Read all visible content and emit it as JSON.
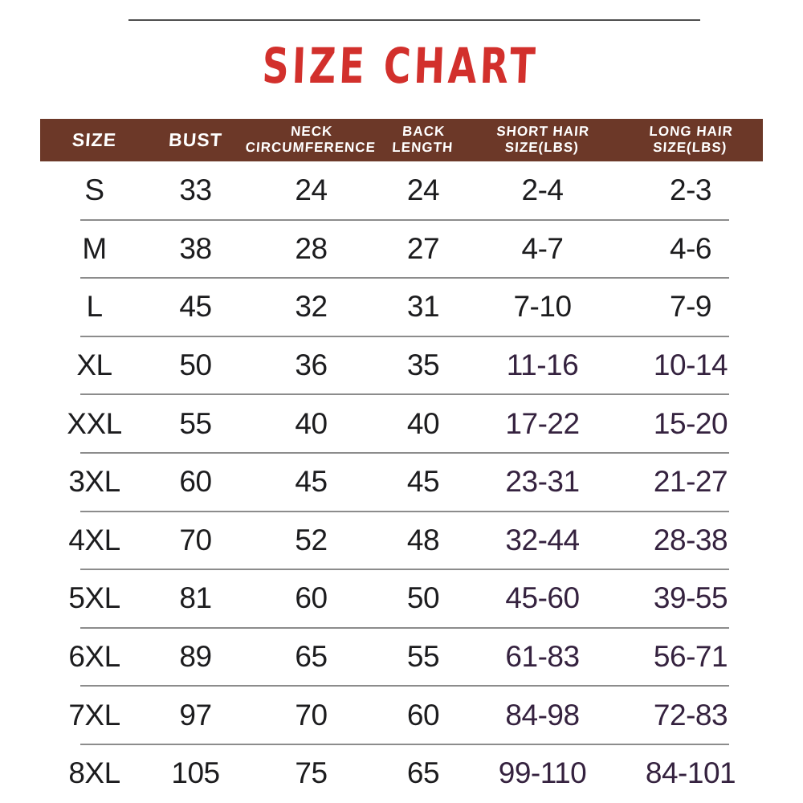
{
  "title": "SIZE CHART",
  "colors": {
    "title_red": "#d2302c",
    "header_bg": "#6c3828",
    "header_text": "#ffffff",
    "text_dark": "#1c1c1e",
    "text_purple": "#35223f",
    "row_divider": "#8c8c8c",
    "top_rule": "#4f4f4f",
    "background": "#ffffff"
  },
  "chart_data": {
    "type": "table",
    "title": "SIZE CHART",
    "columns": [
      "SIZE",
      "BUST",
      "NECK CIRCUMFERENCE",
      "BACK LENGTH",
      "SHORT HAIR SIZE(LBS)",
      "LONG HAIR SIZE(LBS)"
    ],
    "header_lines": [
      [
        "SIZE"
      ],
      [
        "BUST"
      ],
      [
        "NECK",
        "CIRCUMFERENCE"
      ],
      [
        "BACK",
        "LENGTH"
      ],
      [
        "SHORT HAIR",
        "SIZE(LBS)"
      ],
      [
        "LONG HAIR",
        "SIZE(LBS)"
      ]
    ],
    "rows": [
      [
        "S",
        "33",
        "24",
        "24",
        "2-4",
        "2-3"
      ],
      [
        "M",
        "38",
        "28",
        "27",
        "4-7",
        "4-6"
      ],
      [
        "L",
        "45",
        "32",
        "31",
        "7-10",
        "7-9"
      ],
      [
        "XL",
        "50",
        "36",
        "35",
        "11-16",
        "10-14"
      ],
      [
        "XXL",
        "55",
        "40",
        "40",
        "17-22",
        "15-20"
      ],
      [
        "3XL",
        "60",
        "45",
        "45",
        "23-31",
        "21-27"
      ],
      [
        "4XL",
        "70",
        "52",
        "48",
        "32-44",
        "28-38"
      ],
      [
        "5XL",
        "81",
        "60",
        "50",
        "45-60",
        "39-55"
      ],
      [
        "6XL",
        "89",
        "65",
        "55",
        "61-83",
        "56-71"
      ],
      [
        "7XL",
        "97",
        "70",
        "60",
        "84-98",
        "72-83"
      ],
      [
        "8XL",
        "105",
        "75",
        "65",
        "99-110",
        "84-101"
      ]
    ]
  }
}
